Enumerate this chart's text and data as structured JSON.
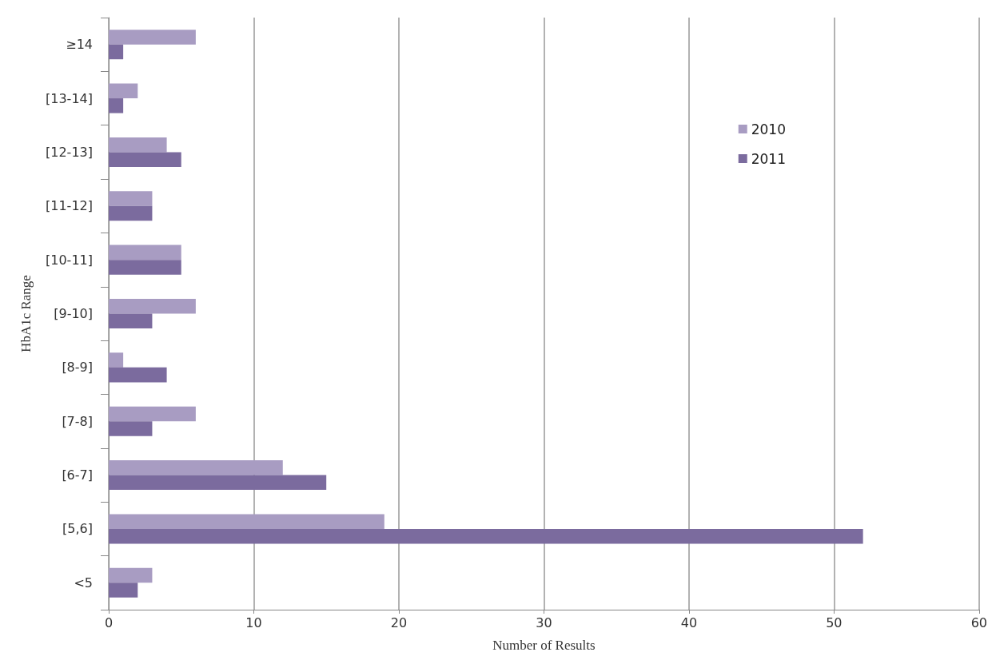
{
  "chart_data": {
    "type": "bar",
    "orientation": "horizontal",
    "xlabel": "Number of Results",
    "ylabel": "HbA1c Range",
    "categories": [
      "≥14",
      "[13-14]",
      "[12-13]",
      "[11-12]",
      "[10-11]",
      "[9-10]",
      "[8-9]",
      "[7-8]",
      "[6-7]",
      "[5,6]",
      "<5"
    ],
    "series": [
      {
        "name": "2010",
        "color": "#a89cc2",
        "values": [
          6,
          2,
          4,
          3,
          5,
          6,
          1,
          6,
          12,
          19,
          3
        ]
      },
      {
        "name": "2011",
        "color": "#7b6b9e",
        "values": [
          1,
          1,
          5,
          3,
          5,
          3,
          4,
          3,
          15,
          52,
          2
        ]
      }
    ],
    "xlim": [
      0,
      60
    ],
    "xticks": [
      0,
      10,
      20,
      30,
      40,
      50,
      60
    ],
    "grid": "x",
    "legend": "top right"
  }
}
